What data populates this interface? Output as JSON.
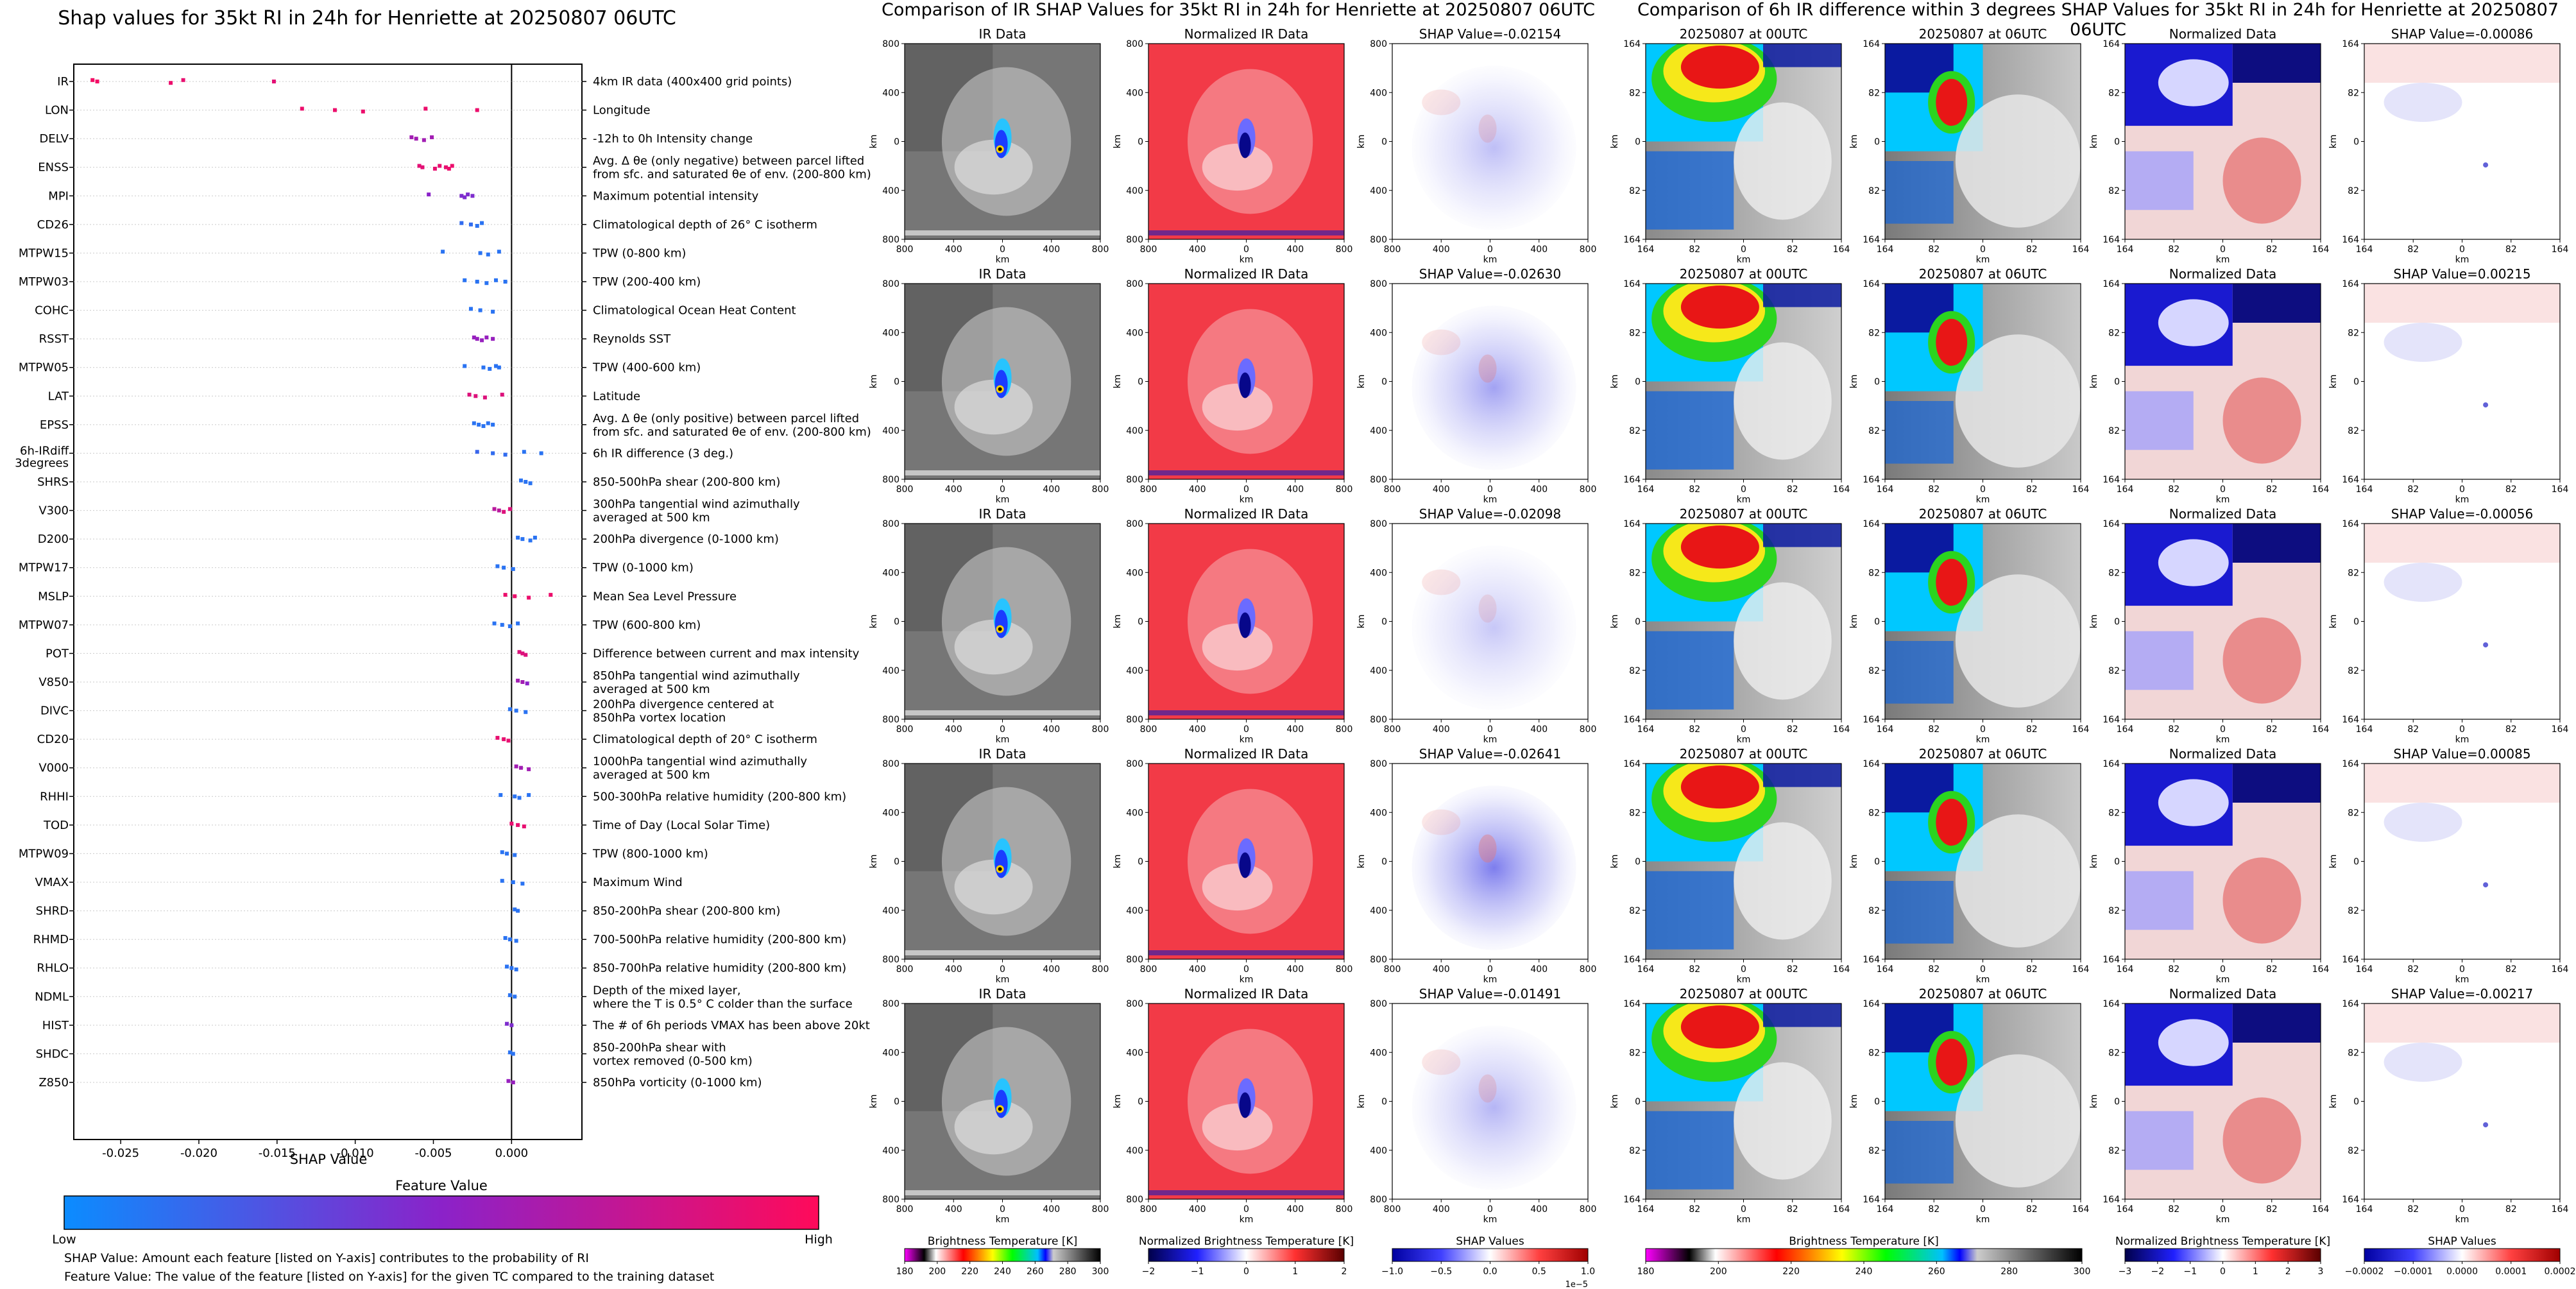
{
  "shap_summary": {
    "title": "Shap values for 35kt RI in 24h for Henriette at 20250807 06UTC",
    "xlabel": "SHAP Value",
    "colorbar": {
      "title": "Feature Value",
      "low": "Low",
      "high": "High"
    },
    "captions": [
      "SHAP Value: Amount each feature [listed on Y-axis] contributes to the probability of RI",
      "Feature Value: The value of the feature [listed on Y-axis] for the given TC compared to the training dataset"
    ]
  },
  "chart_data": {
    "type": "scatter",
    "title": "Shap values for 35kt RI in 24h for Henriette at 20250807 06UTC",
    "xlabel": "SHAP Value",
    "xlim": [
      -0.028,
      0.0045
    ],
    "xticks": [
      "-0.025",
      "-0.020",
      "-0.015",
      "-0.010",
      "-0.005",
      "0.000"
    ],
    "xtick_values": [
      -0.025,
      -0.02,
      -0.015,
      -0.01,
      -0.005,
      0.0
    ],
    "features": [
      {
        "name": "IR",
        "desc": [
          "4km IR data (400x400 grid points)"
        ],
        "values": [
          -0.0268,
          -0.0265,
          -0.0218,
          -0.021,
          -0.0152
        ],
        "fv": [
          0.95,
          0.95,
          0.92,
          0.9,
          0.88
        ]
      },
      {
        "name": "LON",
        "desc": [
          "Longitude"
        ],
        "values": [
          -0.0134,
          -0.0113,
          -0.0095,
          -0.0055,
          -0.0022
        ],
        "fv": [
          0.92,
          0.92,
          0.92,
          0.92,
          0.92
        ]
      },
      {
        "name": "DELV",
        "desc": [
          "-12h to 0h Intensity change"
        ],
        "values": [
          -0.0064,
          -0.0061,
          -0.0056,
          -0.0051
        ],
        "fv": [
          0.6,
          0.6,
          0.6,
          0.6
        ]
      },
      {
        "name": "ENSS",
        "desc": [
          "Avg. Δ θe (only negative) between parcel lifted",
          "from sfc. and saturated θe of env. (200-800 km)"
        ],
        "values": [
          -0.0059,
          -0.0057,
          -0.0049,
          -0.0046,
          -0.0042,
          -0.004,
          -0.0038
        ],
        "fv": [
          0.88,
          0.88,
          0.9,
          0.9,
          0.9,
          0.92,
          0.92
        ]
      },
      {
        "name": "MPI",
        "desc": [
          "Maximum potential intensity"
        ],
        "values": [
          -0.0053,
          -0.0032,
          -0.003,
          -0.0028,
          -0.0025
        ],
        "fv": [
          0.5,
          0.45,
          0.45,
          0.45,
          0.45
        ]
      },
      {
        "name": "CD26",
        "desc": [
          "Climatological depth of 26° C isotherm"
        ],
        "values": [
          -0.0032,
          -0.0026,
          -0.0022,
          -0.0019
        ],
        "fv": [
          0.15,
          0.15,
          0.12,
          0.12
        ]
      },
      {
        "name": "MTPW15",
        "desc": [
          "TPW (0-800 km)"
        ],
        "values": [
          -0.0044,
          -0.002,
          -0.0015,
          -0.0008
        ],
        "fv": [
          0.12,
          0.12,
          0.12,
          0.12
        ]
      },
      {
        "name": "MTPW03",
        "desc": [
          "TPW (200-400 km)"
        ],
        "values": [
          -0.003,
          -0.0022,
          -0.0016,
          -0.001,
          -0.0004
        ],
        "fv": [
          0.12,
          0.12,
          0.12,
          0.12,
          0.12
        ]
      },
      {
        "name": "COHC",
        "desc": [
          "Climatological Ocean Heat Content"
        ],
        "values": [
          -0.0026,
          -0.002,
          -0.0012
        ],
        "fv": [
          0.12,
          0.12,
          0.12
        ]
      },
      {
        "name": "RSST",
        "desc": [
          "Reynolds SST"
        ],
        "values": [
          -0.0024,
          -0.0022,
          -0.0019,
          -0.0016,
          -0.0012
        ],
        "fv": [
          0.55,
          0.55,
          0.55,
          0.55,
          0.55
        ]
      },
      {
        "name": "MTPW05",
        "desc": [
          "TPW (400-600 km)"
        ],
        "values": [
          -0.003,
          -0.0018,
          -0.0014,
          -0.001,
          -0.0008
        ],
        "fv": [
          0.12,
          0.12,
          0.12,
          0.12,
          0.12
        ]
      },
      {
        "name": "LAT",
        "desc": [
          "Latitude"
        ],
        "values": [
          -0.0027,
          -0.0023,
          -0.0017,
          -0.0006
        ],
        "fv": [
          0.85,
          0.85,
          0.85,
          0.85
        ]
      },
      {
        "name": "EPSS",
        "desc": [
          "Avg. Δ θe (only positive) between parcel lifted",
          "from sfc. and saturated θe of env. (200-800 km)"
        ],
        "values": [
          -0.0024,
          -0.0021,
          -0.0018,
          -0.0015,
          -0.0012
        ],
        "fv": [
          0.12,
          0.12,
          0.12,
          0.12,
          0.12
        ]
      },
      {
        "name": "6h-IRdiff 3degrees",
        "desc": [
          "6h IR difference (3 deg.)"
        ],
        "values": [
          -0.0022,
          -0.0012,
          -0.0004,
          0.0008,
          0.0019
        ],
        "fv": [
          0.18,
          0.15,
          0.15,
          0.12,
          0.12
        ]
      },
      {
        "name": "SHRS",
        "desc": [
          "850-500hPa shear (200-800 km)"
        ],
        "values": [
          0.0006,
          0.0009,
          0.0012
        ],
        "fv": [
          0.12,
          0.12,
          0.12
        ]
      },
      {
        "name": "V300",
        "desc": [
          "300hPa tangential wind azimuthally",
          "averaged at 500 km"
        ],
        "values": [
          -0.0011,
          -0.0008,
          -0.0005,
          -0.0001
        ],
        "fv": [
          0.7,
          0.7,
          0.85,
          0.85
        ]
      },
      {
        "name": "D200",
        "desc": [
          "200hPa divergence (0-1000 km)"
        ],
        "values": [
          0.0004,
          0.0007,
          0.0012,
          0.0015
        ],
        "fv": [
          0.12,
          0.12,
          0.12,
          0.12
        ]
      },
      {
        "name": "MTPW17",
        "desc": [
          "TPW (0-1000 km)"
        ],
        "values": [
          -0.0009,
          -0.0005,
          0.0001
        ],
        "fv": [
          0.12,
          0.12,
          0.12
        ]
      },
      {
        "name": "MSLP",
        "desc": [
          "Mean Sea Level Pressure"
        ],
        "values": [
          -0.0004,
          0.0002,
          0.0011,
          0.0025
        ],
        "fv": [
          0.92,
          0.92,
          0.92,
          0.92
        ]
      },
      {
        "name": "MTPW07",
        "desc": [
          "TPW (600-800 km)"
        ],
        "values": [
          -0.0011,
          -0.0006,
          -0.0001,
          0.0004
        ],
        "fv": [
          0.12,
          0.12,
          0.12,
          0.12
        ]
      },
      {
        "name": "POT",
        "desc": [
          "Difference between current and max intensity"
        ],
        "values": [
          0.0005,
          0.0007,
          0.0009
        ],
        "fv": [
          0.85,
          0.85,
          0.85
        ]
      },
      {
        "name": "V850",
        "desc": [
          "850hPa tangential wind azimuthally",
          "averaged at 500 km"
        ],
        "values": [
          0.0004,
          0.0007,
          0.001
        ],
        "fv": [
          0.6,
          0.6,
          0.5
        ]
      },
      {
        "name": "DIVC",
        "desc": [
          "200hPa divergence centered at",
          "850hPa vortex location"
        ],
        "values": [
          -0.0001,
          0.0003,
          0.0009
        ],
        "fv": [
          0.12,
          0.12,
          0.12
        ]
      },
      {
        "name": "CD20",
        "desc": [
          "Climatological depth of 20° C isotherm"
        ],
        "values": [
          -0.0009,
          -0.0005,
          -0.0002
        ],
        "fv": [
          0.9,
          0.9,
          0.9
        ]
      },
      {
        "name": "V000",
        "desc": [
          "1000hPa tangential wind azimuthally",
          "averaged at 500 km"
        ],
        "values": [
          0.0003,
          0.0006,
          0.0011
        ],
        "fv": [
          0.6,
          0.6,
          0.6
        ]
      },
      {
        "name": "RHHI",
        "desc": [
          "500-300hPa relative humidity (200-800 km)"
        ],
        "values": [
          -0.0007,
          0.0002,
          0.0005,
          0.0011
        ],
        "fv": [
          0.12,
          0.12,
          0.12,
          0.12
        ]
      },
      {
        "name": "TOD",
        "desc": [
          "Time of Day (Local Solar Time)"
        ],
        "values": [
          0.0,
          0.0004,
          0.0008
        ],
        "fv": [
          0.9,
          0.9,
          0.9
        ]
      },
      {
        "name": "MTPW09",
        "desc": [
          "TPW (800-1000 km)"
        ],
        "values": [
          -0.0006,
          -0.0003,
          0.0002
        ],
        "fv": [
          0.12,
          0.12,
          0.12
        ]
      },
      {
        "name": "VMAX",
        "desc": [
          "Maximum Wind"
        ],
        "values": [
          -0.0006,
          0.0001,
          0.0007
        ],
        "fv": [
          0.12,
          0.12,
          0.12
        ]
      },
      {
        "name": "SHRD",
        "desc": [
          "850-200hPa shear (200-800 km)"
        ],
        "values": [
          0.0002,
          0.0004
        ],
        "fv": [
          0.12,
          0.12
        ]
      },
      {
        "name": "RHMD",
        "desc": [
          "700-500hPa relative humidity (200-800 km)"
        ],
        "values": [
          -0.0004,
          -0.0001,
          0.0003
        ],
        "fv": [
          0.12,
          0.12,
          0.12
        ]
      },
      {
        "name": "RHLO",
        "desc": [
          "850-700hPa relative humidity (200-800 km)"
        ],
        "values": [
          -0.0003,
          0.0,
          0.0003
        ],
        "fv": [
          0.12,
          0.12,
          0.12
        ]
      },
      {
        "name": "NDML",
        "desc": [
          "Depth of the mixed layer,",
          "where the T is 0.5° C colder than the surface"
        ],
        "values": [
          -0.0001,
          0.0002
        ],
        "fv": [
          0.12,
          0.12
        ]
      },
      {
        "name": "HIST",
        "desc": [
          "The # of 6h periods VMAX has been above 20kt"
        ],
        "values": [
          -0.0003,
          0.0
        ],
        "fv": [
          0.45,
          0.45
        ]
      },
      {
        "name": "SHDC",
        "desc": [
          "850-200hPa shear with",
          "vortex removed (0-500 km)"
        ],
        "values": [
          -0.0001,
          0.0001
        ],
        "fv": [
          0.12,
          0.12
        ]
      },
      {
        "name": "Z850",
        "desc": [
          "850hPa vorticity (0-1000 km)"
        ],
        "values": [
          -0.0002,
          0.0001
        ],
        "fv": [
          0.55,
          0.55
        ]
      }
    ]
  },
  "ir_comparison": {
    "title": "Comparison of IR SHAP Values for 35kt RI in 24h for Henriette at 20250807 06UTC",
    "col_titles": [
      "IR Data",
      "Normalized IR Data"
    ],
    "shap_titles": [
      "SHAP Value=-0.02154",
      "SHAP Value=-0.02630",
      "SHAP Value=-0.02098",
      "SHAP Value=-0.02641",
      "SHAP Value=-0.01491"
    ],
    "axis_unit": "km",
    "ticks": [
      "800",
      "400",
      "0",
      "400",
      "800"
    ],
    "colorbars": [
      {
        "label": "Brightness Temperature [K]",
        "ticks": [
          "180",
          "200",
          "220",
          "240",
          "260",
          "280",
          "300"
        ]
      },
      {
        "label": "Normalized Brightness Temperature [K]",
        "ticks": [
          "−2",
          "−1",
          "0",
          "1",
          "2"
        ]
      },
      {
        "label": "SHAP Values",
        "ticks": [
          "−1.0",
          "−0.5",
          "0.0",
          "0.5",
          "1.0"
        ],
        "exponent": "1e−5"
      }
    ]
  },
  "diff_comparison": {
    "title": "Comparison of 6h IR difference within 3 degrees SHAP Values for 35kt RI in 24h for Henriette at 20250807 06UTC",
    "col_titles": [
      "20250807 at 00UTC",
      "20250807 at 06UTC",
      "Normalized Data"
    ],
    "shap_titles": [
      "SHAP Value=-0.00086",
      "SHAP Value=0.00215",
      "SHAP Value=-0.00056",
      "SHAP Value=0.00085",
      "SHAP Value=-0.00217"
    ],
    "axis_unit": "km",
    "ticks": [
      "164",
      "82",
      "0",
      "82",
      "164"
    ],
    "colorbars": [
      {
        "label": "Brightness Temperature [K]",
        "ticks": [
          "180",
          "200",
          "220",
          "240",
          "260",
          "280",
          "300"
        ]
      },
      {
        "label": "Normalized Brightness Temperature [K]",
        "ticks": [
          "−3",
          "−2",
          "−1",
          "0",
          "1",
          "2",
          "3"
        ]
      },
      {
        "label": "SHAP Values",
        "ticks": [
          "−0.0002",
          "−0.0001",
          "0.0000",
          "0.0001",
          "0.0002"
        ]
      }
    ]
  },
  "colors": {
    "low": "#0b8cff",
    "mid": "#8b22c9",
    "high": "#ff0a5a",
    "ir_bg": "#767676",
    "norm_bg": "#f23a47"
  }
}
